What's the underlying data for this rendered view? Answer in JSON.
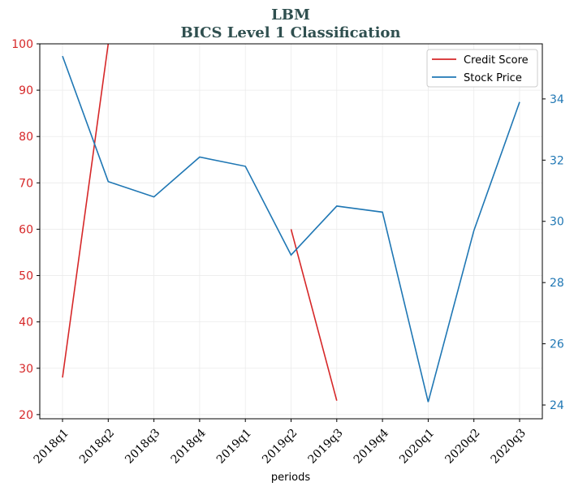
{
  "chart_data": {
    "type": "line",
    "title": "LBM",
    "subtitle": "BICS Level 1 Classification",
    "xlabel": "periods",
    "categories": [
      "2018q1",
      "2018q2",
      "2018q3",
      "2018q4",
      "2019q1",
      "2019q2",
      "2019q3",
      "2019q4",
      "2020q1",
      "2020q2",
      "2020q3"
    ],
    "y_left": {
      "ylim": [
        19.1,
        100
      ],
      "ticks": [
        20,
        30,
        40,
        50,
        60,
        70,
        80,
        90,
        100
      ],
      "color": "#d62728"
    },
    "y_right": {
      "ylim": [
        23.55,
        35.8
      ],
      "ticks": [
        24,
        26,
        28,
        30,
        32,
        34
      ],
      "color": "#1f77b4"
    },
    "grid": true,
    "legend_position": "top-right",
    "series": [
      {
        "name": "Credit Score",
        "axis": "left",
        "color": "#d62728",
        "values": [
          28,
          100,
          null,
          null,
          null,
          60,
          23,
          null,
          null,
          null,
          null
        ]
      },
      {
        "name": "Stock Price",
        "axis": "right",
        "color": "#1f77b4",
        "values": [
          35.4,
          31.3,
          30.8,
          32.1,
          31.8,
          28.9,
          30.5,
          30.3,
          24.1,
          29.7,
          33.9
        ]
      }
    ]
  }
}
